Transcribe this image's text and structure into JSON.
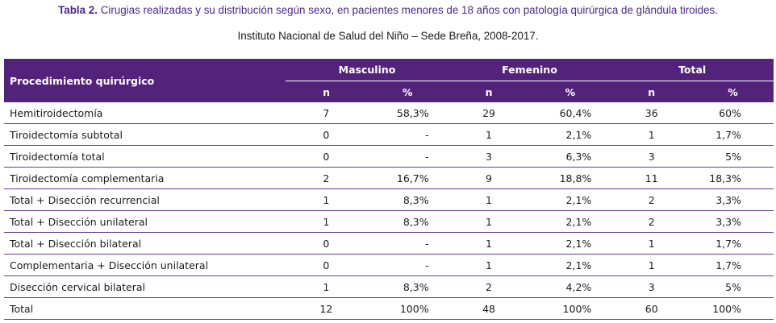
{
  "caption": {
    "label": "Tabla 2.",
    "title": "Cirugias realizadas y su distribución según sexo, en pacientes menores de 18 años con patología quirúrgica de glándula tiroides."
  },
  "subcaption": "Instituto Nacional de Salud del Niño – Sede Breña, 2008-2017.",
  "header": {
    "procedure": "Procedimiento quirúrgico",
    "groups": [
      "Masculino",
      "Femenino",
      "Total"
    ],
    "n_label": "n",
    "pct_label": "%"
  },
  "rows": [
    {
      "procedure": "Hemitiroidectomía",
      "m_n": "7",
      "m_pct": "58,3%",
      "f_n": "29",
      "f_pct": "60,4%",
      "t_n": "36",
      "t_pct": "60%"
    },
    {
      "procedure": "Tiroidectomía subtotal",
      "m_n": "0",
      "m_pct": "-",
      "f_n": "1",
      "f_pct": "2,1%",
      "t_n": "1",
      "t_pct": "1,7%"
    },
    {
      "procedure": "Tiroidectomía total",
      "m_n": "0",
      "m_pct": "-",
      "f_n": "3",
      "f_pct": "6,3%",
      "t_n": "3",
      "t_pct": "5%"
    },
    {
      "procedure": "Tiroidectomía complementaria",
      "m_n": "2",
      "m_pct": "16,7%",
      "f_n": "9",
      "f_pct": "18,8%",
      "t_n": "11",
      "t_pct": "18,3%"
    },
    {
      "procedure": "Total + Disección recurrencial",
      "m_n": "1",
      "m_pct": "8,3%",
      "f_n": "1",
      "f_pct": "2,1%",
      "t_n": "2",
      "t_pct": "3,3%"
    },
    {
      "procedure": "Total + Disección unilateral",
      "m_n": "1",
      "m_pct": "8,3%",
      "f_n": "1",
      "f_pct": "2,1%",
      "t_n": "2",
      "t_pct": "3,3%"
    },
    {
      "procedure": "Total + Disección bilateral",
      "m_n": "0",
      "m_pct": "-",
      "f_n": "1",
      "f_pct": "2,1%",
      "t_n": "1",
      "t_pct": "1,7%"
    },
    {
      "procedure": "Complementaria + Disección unilateral",
      "m_n": "0",
      "m_pct": "-",
      "f_n": "1",
      "f_pct": "2,1%",
      "t_n": "1",
      "t_pct": "1,7%"
    },
    {
      "procedure": "Disección cervical bilateral",
      "m_n": "1",
      "m_pct": "8,3%",
      "f_n": "2",
      "f_pct": "4,2%",
      "t_n": "3",
      "t_pct": "5%"
    },
    {
      "procedure": "Total",
      "m_n": "12",
      "m_pct": "100%",
      "f_n": "48",
      "f_pct": "100%",
      "t_n": "60",
      "t_pct": "100%"
    }
  ],
  "colors": {
    "header_bg": "#53237c",
    "accent_text": "#4a2a8a",
    "row_rule": "#6a3d96"
  }
}
